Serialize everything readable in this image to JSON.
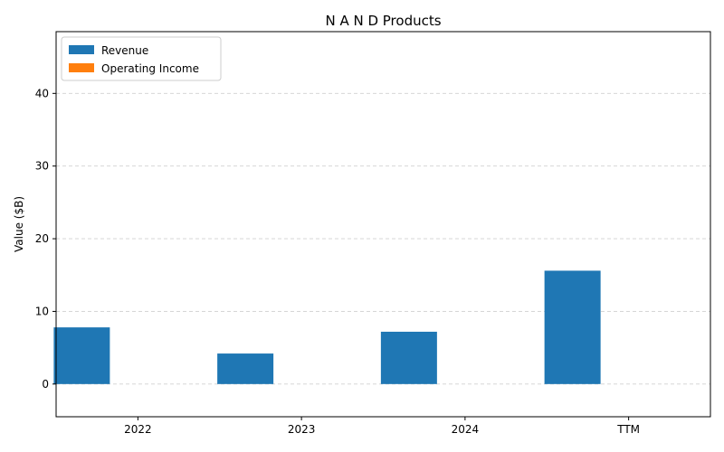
{
  "chart_data": {
    "type": "bar",
    "title": "N A N D Products",
    "xlabel": "",
    "ylabel": "Value ($B)",
    "categories": [
      "2022",
      "2023",
      "2024",
      "TTM"
    ],
    "series": [
      {
        "name": "Revenue",
        "color": "#1f77b4",
        "values": [
          7.8,
          4.2,
          7.2,
          15.6
        ]
      },
      {
        "name": "Operating Income",
        "color": "#ff7f0e",
        "values": [
          0,
          0,
          0,
          0
        ]
      }
    ],
    "ylim": [
      -4.5,
      48.5
    ],
    "yticks": [
      0,
      10,
      20,
      30,
      40
    ],
    "grid": "y, dashed",
    "legend": "top-left"
  }
}
